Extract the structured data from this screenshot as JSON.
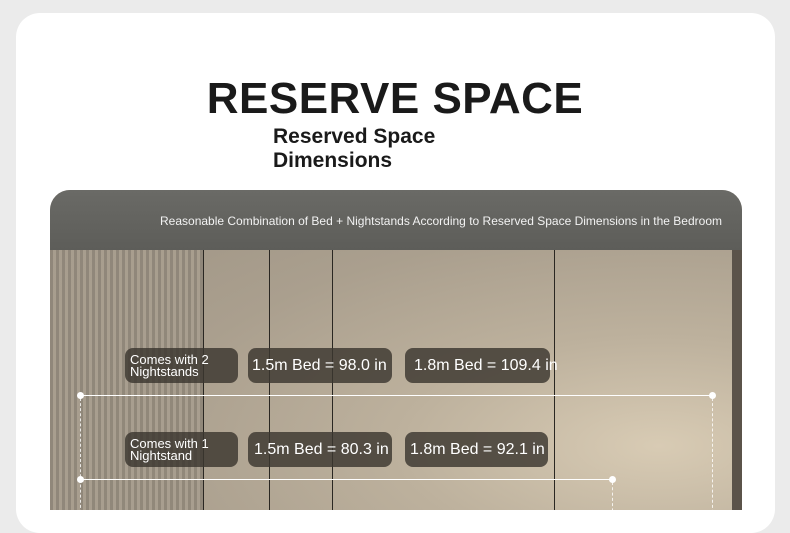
{
  "title": "RESERVE SPACE",
  "subtitle_line1": "Reserved Space",
  "subtitle_line2": "Dimensions",
  "caption": "Reasonable Combination of Bed + Nightstands According to Reserved Space Dimensions in the Bedroom",
  "rows": [
    {
      "label_line1": "Comes with 2",
      "label_line2": "Nightstands",
      "bed15": "1.5m Bed = 98.0 in",
      "bed18": "1.8m Bed = 109.4 in"
    },
    {
      "label_line1": "Comes with 1",
      "label_line2": "Nightstand",
      "bed15": "1.5m Bed = 80.3 in",
      "bed18": "1.8m Bed = 92.1 in"
    }
  ]
}
